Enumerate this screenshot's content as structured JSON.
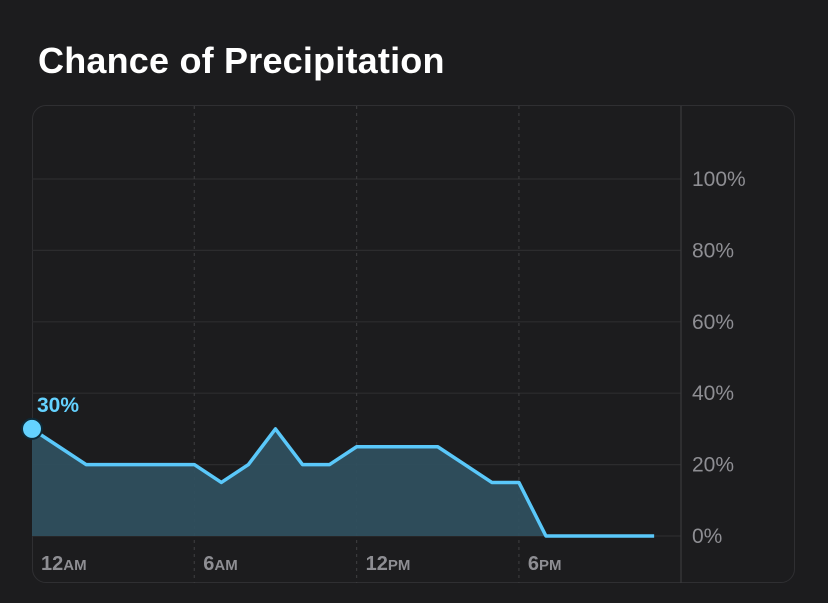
{
  "page": {
    "title": "Chance of Precipitation"
  },
  "colors": {
    "background": "#1c1c1e",
    "line": "#5ac8fa",
    "area": "#2f4f5e",
    "grid": "#2c2c2e",
    "tick_text": "#8e8e93",
    "label": "#64d2ff"
  },
  "chart_data": {
    "type": "area",
    "title": "Chance of Precipitation",
    "xlabel": "",
    "ylabel": "",
    "x": [
      0,
      1,
      2,
      3,
      4,
      5,
      6,
      7,
      8,
      9,
      10,
      11,
      12,
      13,
      14,
      15,
      16,
      17,
      18,
      19,
      20,
      21,
      22,
      23
    ],
    "x_ticks": [
      {
        "at": 0,
        "num": "12",
        "ampm": "AM"
      },
      {
        "at": 6,
        "num": "6",
        "ampm": "AM"
      },
      {
        "at": 12,
        "num": "12",
        "ampm": "PM"
      },
      {
        "at": 18,
        "num": "6",
        "ampm": "PM"
      }
    ],
    "series": [
      {
        "values": [
          30,
          25,
          20,
          20,
          20,
          20,
          20,
          15,
          20,
          30,
          20,
          20,
          25,
          25,
          25,
          25,
          20,
          15,
          15,
          0,
          0,
          0,
          0,
          0
        ]
      }
    ],
    "ylim": [
      0,
      110
    ],
    "y_ticks": [
      "0%",
      "20%",
      "40%",
      "60%",
      "80%",
      "100%"
    ],
    "y_tick_values": [
      0,
      20,
      40,
      60,
      80,
      100
    ],
    "highlight": {
      "index": 0,
      "label": "30%"
    },
    "grid": true,
    "y_axis_position": "right"
  }
}
